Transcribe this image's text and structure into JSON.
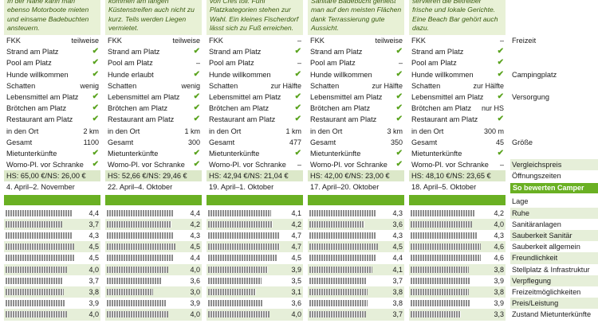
{
  "columns": [
    {
      "description": "wie Fitnessraum und Sauna. In der Nähe kann man ebenso Motorboote mieten und einsame Badebuchten ansteuern.",
      "rows": [
        {
          "label": "FKK",
          "value": "teilweise"
        },
        {
          "label": "Strand am Platz",
          "value": "✔"
        },
        {
          "label": "Pool am Platz",
          "value": "✔"
        },
        {
          "label": "Hunde willkommen",
          "value": "✔"
        },
        {
          "label": "Schatten",
          "value": "wenig"
        },
        {
          "label": "Lebensmittel am Platz",
          "value": "✔"
        },
        {
          "label": "Brötchen am Platz",
          "value": "✔"
        },
        {
          "label": "Restaurant am Platz",
          "value": "✔"
        },
        {
          "label": "in den Ort",
          "value": "2 km"
        },
        {
          "label": "Gesamt",
          "value": "1100"
        },
        {
          "label": "Mietunterkünfte",
          "value": "✔"
        },
        {
          "label": "Womo-Pl. vor Schranke",
          "value": "✔"
        }
      ],
      "price": "HS: 65,00 €/NS: 26,00 €",
      "season": "4. April–2. November",
      "ratings": [
        "4,4",
        "3,7",
        "4,3",
        "4,5",
        "4,5",
        "4,0",
        "3,7",
        "3,8",
        "3,9",
        "4,0"
      ]
    },
    {
      "description": "FKK- und Hundefreunde kommen am langen Küstenstreifen auch nicht zu kurz. Teils werden Liegen vermietet.",
      "rows": [
        {
          "label": "FKK",
          "value": "teilweise"
        },
        {
          "label": "Strand am Platz",
          "value": "✔"
        },
        {
          "label": "Pool am Platz",
          "value": "–"
        },
        {
          "label": "Hunde erlaubt",
          "value": "✔"
        },
        {
          "label": "Schatten",
          "value": "wenig"
        },
        {
          "label": "Lebensmittel am Platz",
          "value": "✔"
        },
        {
          "label": "Brötchen am Platz",
          "value": "✔"
        },
        {
          "label": "Restaurant am Platz",
          "value": "✔"
        },
        {
          "label": "in den Ort",
          "value": "1 km"
        },
        {
          "label": "Gesamt",
          "value": "300"
        },
        {
          "label": "Mietunterkünfte",
          "value": "✔"
        },
        {
          "label": "Womo-Pl. vor Schranke",
          "value": "✔"
        }
      ],
      "price": "HS: 52,66 €/NS: 29,46 €",
      "season": "22. April–4. Oktober",
      "ratings": [
        "4,4",
        "4,2",
        "4,3",
        "4,5",
        "4,4",
        "4,0",
        "3,6",
        "3,0",
        "3,9",
        "4,0"
      ]
    },
    {
      "description": "von Cres toll. Fünf Platzkategorien stehen zur Wahl. Ein kleines Fischerdorf lässt sich zu Fuß erreichen.",
      "rows": [
        {
          "label": "FKK",
          "value": "–"
        },
        {
          "label": "Strand am Platz",
          "value": "✔"
        },
        {
          "label": "Pool am Platz",
          "value": "–"
        },
        {
          "label": "Hunde willkommen",
          "value": "✔"
        },
        {
          "label": "Schatten",
          "value": "zur Hälfte"
        },
        {
          "label": "Lebensmittel am Platz",
          "value": "✔"
        },
        {
          "label": "Brötchen am Platz",
          "value": "✔"
        },
        {
          "label": "Restaurant am Platz",
          "value": "✔"
        },
        {
          "label": "in den Ort",
          "value": "1 km"
        },
        {
          "label": "Gesamt",
          "value": "477"
        },
        {
          "label": "Mietunterkünfte",
          "value": "✔"
        },
        {
          "label": "Womo-Pl. vor Schranke",
          "value": "–"
        }
      ],
      "price": "HS: 42,94 €/NS: 21,04 €",
      "season": "19. April–1. Oktober",
      "ratings": [
        "4,1",
        "4,2",
        "4,7",
        "4,7",
        "4,5",
        "3,9",
        "3,5",
        "3,1",
        "3,6",
        "4,0"
      ]
    },
    {
      "description": "fen ans Wasser. Um sie Sanitäre Badebucht genießt man auf den meisten Flächen dank Terrassierung gute Aussicht.",
      "rows": [
        {
          "label": "FKK",
          "value": "teilweise"
        },
        {
          "label": "Strand am Platz",
          "value": "✔"
        },
        {
          "label": "Pool am Platz",
          "value": "–"
        },
        {
          "label": "Hunde willkommen",
          "value": "✔"
        },
        {
          "label": "Schatten",
          "value": "zur Hälfte"
        },
        {
          "label": "Lebensmittel am Platz",
          "value": "✔"
        },
        {
          "label": "Brötchen am Platz",
          "value": "✔"
        },
        {
          "label": "Restaurant am Platz",
          "value": "✔"
        },
        {
          "label": "in den Ort",
          "value": "3 km"
        },
        {
          "label": "Gesamt",
          "value": "350"
        },
        {
          "label": "Mietunterkünfte",
          "value": "✔"
        },
        {
          "label": "Womo-Pl. vor Schranke",
          "value": "✔"
        }
      ],
      "price": "HS: 42,00 €/NS: 23,00 €",
      "season": "17. April–20. Oktober",
      "ratings": [
        "4,3",
        "3,6",
        "4,3",
        "4,5",
        "4,4",
        "4,1",
        "3,7",
        "3,8",
        "3,8",
        "3,7"
      ]
    },
    {
      "description": "platzeigenen Restaurant servieren die Betreiber frische und lokale Gerichte. Eine Beach Bar gehört auch dazu.",
      "rows": [
        {
          "label": "FKK",
          "value": "–"
        },
        {
          "label": "Strand am Platz",
          "value": "✔"
        },
        {
          "label": "Pool am Platz",
          "value": "✔"
        },
        {
          "label": "Hunde willkommen",
          "value": "✔"
        },
        {
          "label": "Schatten",
          "value": "zur Hälfte"
        },
        {
          "label": "Lebensmittel am Platz",
          "value": "✔"
        },
        {
          "label": "Brötchen am Platz",
          "value": "nur HS"
        },
        {
          "label": "Restaurant am Platz",
          "value": "✔"
        },
        {
          "label": "in den Ort",
          "value": "300 m"
        },
        {
          "label": "Gesamt",
          "value": "45"
        },
        {
          "label": "Mietunterkünfte",
          "value": "✔"
        },
        {
          "label": "Womo-Pl. vor Schranke",
          "value": "–"
        }
      ],
      "price": "HS: 48,10 €/NS: 23,65 €",
      "season": "18. April–5. Oktober",
      "ratings": [
        "4,2",
        "4,0",
        "4,3",
        "4,6",
        "4,6",
        "3,8",
        "3,9",
        "3,8",
        "3,9",
        "3,3"
      ]
    }
  ],
  "labels": {
    "freizeit": "Freizeit",
    "campingplatz": "Campingplatz",
    "versorgung": "Versorgung",
    "groesse": "Größe",
    "vergleichspreis": "Vergleichspreis",
    "oeffnungszeiten": "Öffnungszeiten",
    "ratings_header": "So bewerten Camper",
    "rating_categories": [
      "Lage",
      "Ruhe",
      "Sanitäranlagen",
      "Sauberkeit Sanitär",
      "Sauberkeit allgemein",
      "Freundlichkeit",
      "Stellplatz & Infrastruktur",
      "Verpflegung",
      "Freizeitmöglichkeiten",
      "Preis/Leistung",
      "Zustand Mietunterkünfte"
    ]
  },
  "extra_rating_row": [
    "",
    "",
    "",
    "",
    ""
  ],
  "colors": {
    "accent_green": "#6ab023",
    "light_green": "#e6efd9",
    "check_green": "#5aa31e"
  }
}
